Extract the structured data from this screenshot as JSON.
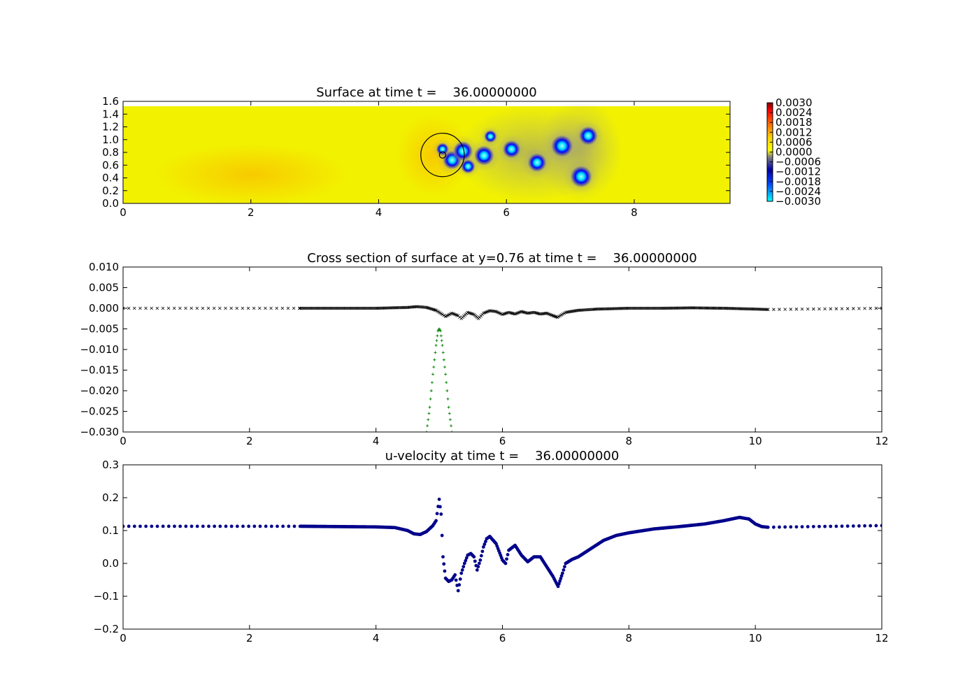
{
  "chart_data": [
    {
      "type": "heatmap",
      "title": "Surface at time t =    36.00000000",
      "xlabel": "",
      "ylabel": "",
      "xlim": [
        0,
        9.5
      ],
      "ylim": [
        0,
        1.6
      ],
      "xticks": [
        "0",
        "2",
        "4",
        "6",
        "8"
      ],
      "xtick_values": [
        0,
        2,
        4,
        6,
        8
      ],
      "yticks": [
        "0.0",
        "0.2",
        "0.4",
        "0.6",
        "0.8",
        "1.0",
        "1.2",
        "1.4",
        "1.6"
      ],
      "ytick_values": [
        0,
        0.2,
        0.4,
        0.6,
        0.8,
        1.0,
        1.2,
        1.4,
        1.6
      ],
      "domain": {
        "x": [
          0,
          9.5
        ],
        "y": [
          0,
          1.52
        ]
      },
      "colorbar": {
        "min": -0.003,
        "max": 0.003,
        "ticks": [
          "0.0030",
          "0.0024",
          "0.0018",
          "0.0012",
          "0.0006",
          "0.0000",
          "−0.0006",
          "−0.0012",
          "−0.0018",
          "−0.0024",
          "−0.0030"
        ],
        "tick_values": [
          0.003,
          0.0024,
          0.0018,
          0.0012,
          0.0006,
          0,
          -0.0006,
          -0.0012,
          -0.0018,
          -0.0024,
          -0.003
        ],
        "colormap": [
          "#8b0000",
          "#ff0000",
          "#ff8000",
          "#ffff00",
          "#808080",
          "#0000ff",
          "#00ffff"
        ]
      },
      "background_value": 0.0,
      "features": [
        {
          "kind": "depression",
          "x": 5.0,
          "y": 0.85,
          "value": -0.0012
        },
        {
          "kind": "depression",
          "x": 5.15,
          "y": 0.68,
          "value": -0.0024
        },
        {
          "kind": "depression",
          "x": 5.32,
          "y": 0.82,
          "value": -0.0026
        },
        {
          "kind": "depression",
          "x": 5.4,
          "y": 0.58,
          "value": -0.0015
        },
        {
          "kind": "depression",
          "x": 5.65,
          "y": 0.75,
          "value": -0.0026
        },
        {
          "kind": "depression",
          "x": 5.75,
          "y": 1.05,
          "value": -0.0012
        },
        {
          "kind": "depression",
          "x": 6.08,
          "y": 0.85,
          "value": -0.0022
        },
        {
          "kind": "depression",
          "x": 6.48,
          "y": 0.64,
          "value": -0.0024
        },
        {
          "kind": "depression",
          "x": 6.87,
          "y": 0.9,
          "value": -0.003
        },
        {
          "kind": "depression",
          "x": 7.17,
          "y": 0.42,
          "value": -0.003
        },
        {
          "kind": "depression",
          "x": 7.28,
          "y": 1.06,
          "value": -0.0024
        }
      ],
      "overlay": {
        "circle": {
          "x": 5.0,
          "y": 0.76,
          "r": 0.34
        },
        "small_circle": {
          "x": 5.0,
          "y": 0.76,
          "r": 0.05
        }
      }
    },
    {
      "type": "scatter",
      "title": "Cross section of surface at y=0.76 at time t =    36.00000000",
      "xlabel": "",
      "ylabel": "",
      "xlim": [
        0,
        12
      ],
      "ylim": [
        -0.03,
        0.01
      ],
      "xticks": [
        "0",
        "2",
        "4",
        "6",
        "8",
        "10",
        "12"
      ],
      "xtick_values": [
        0,
        2,
        4,
        6,
        8,
        10,
        12
      ],
      "yticks": [
        "0.010",
        "0.005",
        "0.000",
        "−0.005",
        "−0.010",
        "−0.015",
        "−0.020",
        "−0.025",
        "−0.030"
      ],
      "ytick_values": [
        0.01,
        0.005,
        0,
        -0.005,
        -0.01,
        -0.015,
        -0.02,
        -0.025,
        -0.03
      ],
      "series": [
        {
          "marker": "x",
          "color": "#000000",
          "x": [
            2.8,
            4.0,
            4.5,
            4.65,
            4.8,
            4.95,
            5.05,
            5.1,
            5.2,
            5.3,
            5.35,
            5.45,
            5.55,
            5.62,
            5.7,
            5.8,
            5.9,
            6.0,
            6.1,
            6.2,
            6.3,
            6.4,
            6.5,
            6.6,
            6.7,
            6.8,
            6.87,
            7.0,
            7.2,
            7.5,
            8.0,
            8.5,
            9.0,
            9.5,
            10.0,
            10.2
          ],
          "y": [
            0.0,
            0.0,
            0.0002,
            0.0004,
            0.0002,
            -0.0005,
            -0.0015,
            -0.002,
            -0.0012,
            -0.0018,
            -0.0025,
            -0.001,
            -0.0015,
            -0.0025,
            -0.0012,
            -0.0006,
            -0.0008,
            -0.0015,
            -0.001,
            -0.0014,
            -0.0008,
            -0.0012,
            -0.001,
            -0.0014,
            -0.0012,
            -0.0018,
            -0.0022,
            -0.001,
            -0.0005,
            -0.0002,
            0.0,
            0.0,
            0.0001,
            0.0,
            -0.0002,
            -0.0003
          ]
        },
        {
          "marker": "x-sparse",
          "color": "#000000",
          "x": [
            0,
            2.8,
            10.2,
            12
          ],
          "y": [
            0.0,
            0.0,
            -0.0003,
            0.0
          ]
        },
        {
          "marker": "+",
          "color": "#008000",
          "x": [
            4.8,
            4.85,
            4.9,
            4.95,
            4.98,
            5.0,
            5.02,
            5.05,
            5.1,
            5.15,
            5.2
          ],
          "y": [
            -0.03,
            -0.024,
            -0.016,
            -0.009,
            -0.0055,
            -0.005,
            -0.0055,
            -0.009,
            -0.016,
            -0.024,
            -0.03
          ]
        }
      ]
    },
    {
      "type": "scatter",
      "title": "u-velocity at time t =    36.00000000",
      "xlabel": "",
      "ylabel": "",
      "xlim": [
        0,
        12
      ],
      "ylim": [
        -0.2,
        0.3
      ],
      "xticks": [
        "0",
        "2",
        "4",
        "6",
        "8",
        "10",
        "12"
      ],
      "xtick_values": [
        0,
        2,
        4,
        6,
        8,
        10,
        12
      ],
      "yticks": [
        "0.3",
        "0.2",
        "0.1",
        "0.0",
        "−0.1",
        "−0.2"
      ],
      "ytick_values": [
        0.3,
        0.2,
        0.1,
        0.0,
        -0.1,
        -0.2
      ],
      "series": [
        {
          "marker": "o",
          "color": "#00008b",
          "x": [
            0,
            2.8,
            4.0,
            4.3,
            4.5,
            4.6,
            4.7,
            4.8,
            4.9,
            4.95,
            5.0,
            5.03,
            5.06,
            5.1,
            5.15,
            5.2,
            5.25,
            5.3,
            5.35,
            5.4,
            5.45,
            5.5,
            5.55,
            5.6,
            5.65,
            5.7,
            5.75,
            5.8,
            5.9,
            6.0,
            6.05,
            6.1,
            6.2,
            6.3,
            6.4,
            6.5,
            6.6,
            6.7,
            6.8,
            6.88,
            6.95,
            7.0,
            7.1,
            7.2,
            7.4,
            7.6,
            7.8,
            8.0,
            8.4,
            8.8,
            9.2,
            9.5,
            9.75,
            9.9,
            10.0,
            10.1,
            10.2,
            12
          ],
          "y": [
            0.113,
            0.113,
            0.111,
            0.109,
            0.1,
            0.09,
            0.088,
            0.097,
            0.115,
            0.13,
            0.195,
            0.15,
            0.02,
            -0.045,
            -0.055,
            -0.05,
            -0.035,
            -0.083,
            -0.03,
            0.0,
            0.025,
            0.03,
            0.02,
            -0.02,
            0.01,
            0.05,
            0.075,
            0.082,
            0.06,
            0.01,
            0.0,
            0.04,
            0.055,
            0.025,
            0.005,
            0.02,
            0.02,
            -0.01,
            -0.04,
            -0.07,
            -0.03,
            0.0,
            0.012,
            0.02,
            0.045,
            0.07,
            0.085,
            0.093,
            0.105,
            0.112,
            0.12,
            0.13,
            0.14,
            0.135,
            0.12,
            0.112,
            0.11,
            0.115
          ]
        }
      ]
    }
  ]
}
